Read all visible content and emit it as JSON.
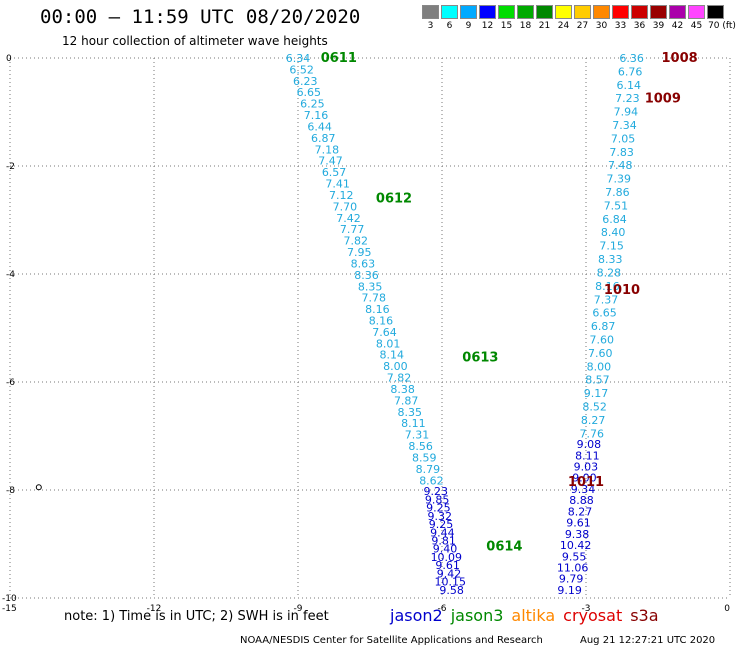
{
  "header": {
    "title": "00:00 – 11:59 UTC 08/20/2020",
    "subtitle": "12 hour collection of altimeter wave heights"
  },
  "color_scale": {
    "bins": [
      {
        "label": "3",
        "color": "#7f7f7f"
      },
      {
        "label": "6",
        "color": "#00ffff"
      },
      {
        "label": "9",
        "color": "#00aaff"
      },
      {
        "label": "12",
        "color": "#0000ff"
      },
      {
        "label": "15",
        "color": "#00dd00"
      },
      {
        "label": "18",
        "color": "#00aa00"
      },
      {
        "label": "21",
        "color": "#008800"
      },
      {
        "label": "24",
        "color": "#ffff00"
      },
      {
        "label": "27",
        "color": "#ffcc00"
      },
      {
        "label": "30",
        "color": "#ff8800"
      },
      {
        "label": "33",
        "color": "#ff0000"
      },
      {
        "label": "36",
        "color": "#cc0000"
      },
      {
        "label": "39",
        "color": "#990000"
      },
      {
        "label": "42",
        "color": "#aa00aa"
      },
      {
        "label": "45",
        "color": "#ff44ff"
      },
      {
        "label": "70 (ft)",
        "color": "#000000"
      }
    ]
  },
  "footer": {
    "note": "note:  1) Time is in UTC;  2) SWH is in feet",
    "legend": [
      {
        "label": "jason2",
        "color": "#0000cc"
      },
      {
        "label": "jason3",
        "color": "#008800"
      },
      {
        "label": "altika",
        "color": "#ff8800"
      },
      {
        "label": "cryosat",
        "color": "#dd0000"
      },
      {
        "label": "s3a",
        "color": "#880000"
      }
    ],
    "credit": "NOAA/NESDIS Center for Satellite Applications and Research",
    "timestamp": "Aug 21 12:27:21 UTC 2020"
  },
  "chart_data": {
    "type": "scatter",
    "title": "00:00 – 11:59 UTC 08/20/2020",
    "subtitle": "12 hour collection of altimeter wave heights",
    "xlim": [
      -15,
      0
    ],
    "ylim": [
      -10,
      0
    ],
    "x_ticks": [
      "-15",
      "-12",
      "-9",
      "-6",
      "-3",
      "0"
    ],
    "y_ticks": [
      "0",
      "-2",
      "-4",
      "-6",
      "-8",
      "-10"
    ],
    "grid": true,
    "point_marker": {
      "x": -14.4,
      "y": -7.95
    },
    "colors": {
      "light": "#22aadd",
      "dark": "#0000cc",
      "jason3": "#008800",
      "s3a": "#880000"
    },
    "tracks": [
      {
        "name": "jason3-west",
        "color": "light",
        "x_start": -9.0,
        "y_start": 0.0,
        "x_end": -6.22,
        "y_end": -7.82,
        "values": [
          "6.34",
          "6.52",
          "6.23",
          "6.65",
          "6.25",
          "7.16",
          "6.44",
          "6.87",
          "7.18",
          "7.47",
          "6.57",
          "7.41",
          "7.12",
          "7.70",
          "7.42",
          "7.77",
          "7.82",
          "7.95",
          "8.63",
          "8.36",
          "8.35",
          "7.78",
          "8.16",
          "8.16",
          "7.64",
          "8.01",
          "8.14",
          "8.00",
          "7.82",
          "8.38",
          "7.87",
          "8.35",
          "8.11",
          "7.31",
          "8.56",
          "8.59",
          "8.79",
          "8.62"
        ]
      },
      {
        "name": "jason3-west-tail",
        "color": "dark",
        "x_start": -6.13,
        "y_start": -8.02,
        "x_end": -5.8,
        "y_end": -9.85,
        "values": [
          "9.23",
          "9.85",
          "9.25",
          "9.32",
          "9.25",
          "9.44",
          "9.81",
          "9.40",
          "10.09",
          "9.61",
          "9.42",
          "10.15",
          "9.58"
        ]
      },
      {
        "name": "s3a-east-upper",
        "color": "light",
        "x_start": -2.05,
        "y_start": 0.0,
        "x_end": -2.88,
        "y_end": -6.95,
        "values": [
          "6.36",
          "6.76",
          "6.14",
          "7.23",
          "7.94",
          "7.34",
          "7.05",
          "7.83",
          "7.48",
          "7.39",
          "7.86",
          "7.51",
          "6.84",
          "8.40",
          "7.15",
          "8.33",
          "8.28",
          "8.16",
          "7.37",
          "6.65",
          "6.87",
          "7.60",
          "7.60",
          "8.00",
          "8.57",
          "9.17",
          "8.52",
          "8.27",
          "7.76"
        ]
      },
      {
        "name": "s3a-east-lower",
        "color": "dark",
        "x_start": -2.94,
        "y_start": -7.15,
        "x_end": -3.34,
        "y_end": -9.85,
        "values": [
          "9.08",
          "8.11",
          "9.03",
          "9.00",
          "9.34",
          "8.88",
          "8.27",
          "9.61",
          "9.38",
          "10.42",
          "9.55",
          "11.06",
          "9.79",
          "9.19"
        ]
      }
    ],
    "pass_labels": [
      {
        "text": "0611",
        "color": "jason3",
        "x": -8.15,
        "y": 0.0
      },
      {
        "text": "0612",
        "color": "jason3",
        "x": -7.0,
        "y": -2.6
      },
      {
        "text": "0613",
        "color": "jason3",
        "x": -5.2,
        "y": -5.55
      },
      {
        "text": "0614",
        "color": "jason3",
        "x": -4.7,
        "y": -9.05
      },
      {
        "text": "1008",
        "color": "s3a",
        "x": -1.05,
        "y": 0.0
      },
      {
        "text": "1009",
        "color": "s3a",
        "x": -1.4,
        "y": -0.75
      },
      {
        "text": "1010",
        "color": "s3a",
        "x": -2.25,
        "y": -4.3
      },
      {
        "text": "1011",
        "color": "s3a",
        "x": -3.0,
        "y": -7.85
      }
    ]
  }
}
